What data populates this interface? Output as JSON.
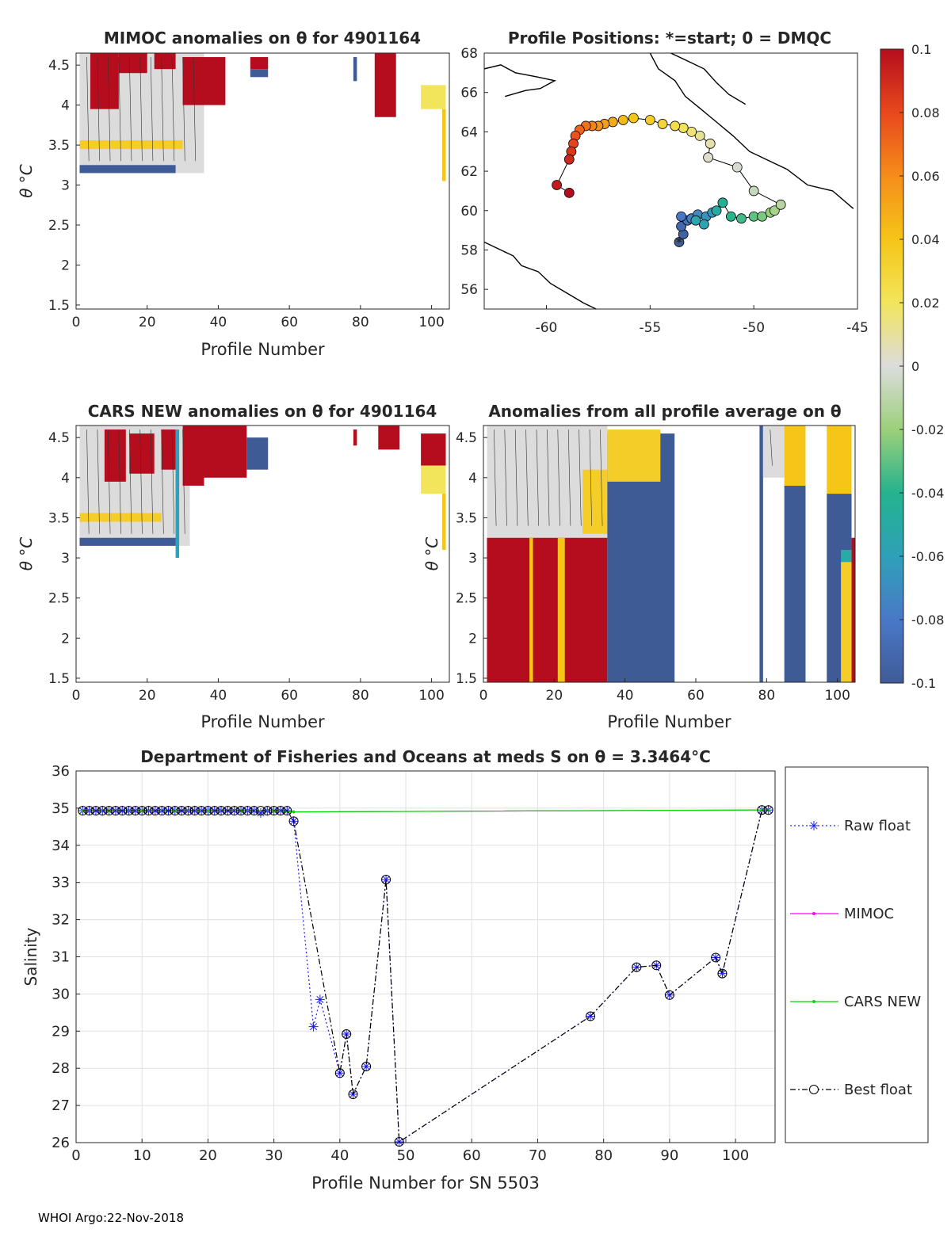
{
  "footer": "WHOI Argo:22-Nov-2018",
  "colors": {
    "axis": "#262626",
    "grid": "#e0e0e0",
    "raw": "#2020ff",
    "mimoc": "#ff00ff",
    "cars": "#00dd00",
    "best": "#000000",
    "land": "#000000",
    "high": "#b50d1d",
    "low": "#3f5b96",
    "neutral": "#d8d8d8",
    "band": "#f5c518"
  },
  "colorbar": {
    "ticks": [
      "0.1",
      "0.08",
      "0.06",
      "0.04",
      "0.02",
      "0",
      "-0.02",
      "-0.04",
      "-0.06",
      "-0.08",
      "-0.1"
    ],
    "range": [
      -0.1,
      0.1
    ],
    "stops": [
      "#3f5b96",
      "#4a78c7",
      "#2fa0b9",
      "#24b38e",
      "#9cd07a",
      "#dcdcdc",
      "#f2e55c",
      "#f5c518",
      "#f58d1a",
      "#e8481c",
      "#b50d1d"
    ]
  },
  "chart_data": [
    {
      "id": "mimoc",
      "type": "heatmap",
      "title": "MIMOC anomalies on θ  for 4901164",
      "xlabel": "Profile Number",
      "ylabel": "θ °C",
      "xlim": [
        0,
        105
      ],
      "ylim": [
        1.45,
        4.65
      ],
      "xticks": [
        "0",
        "20",
        "40",
        "60",
        "80",
        "100"
      ],
      "xtick_values": [
        0,
        20,
        40,
        60,
        80,
        100
      ],
      "yticks": [
        "1.5",
        "2",
        "2.5",
        "3",
        "3.5",
        "4",
        "4.5"
      ],
      "ytick_values": [
        1.5,
        2,
        2.5,
        3,
        3.5,
        4,
        4.5
      ],
      "regions": [
        {
          "x0": 1,
          "x1": 36,
          "y0": 3.15,
          "y1": 4.65,
          "value": 0.0
        },
        {
          "x0": 1,
          "x1": 30,
          "y0": 3.45,
          "y1": 3.56,
          "value": 0.035
        },
        {
          "x0": 4,
          "x1": 12,
          "y0": 3.95,
          "y1": 4.65,
          "value": 0.1
        },
        {
          "x0": 12,
          "x1": 20,
          "y0": 4.4,
          "y1": 4.65,
          "value": 0.1
        },
        {
          "x0": 22,
          "x1": 28,
          "y0": 4.45,
          "y1": 4.65,
          "value": 0.1
        },
        {
          "x0": 30,
          "x1": 42,
          "y0": 4.0,
          "y1": 4.6,
          "value": 0.1
        },
        {
          "x0": 1,
          "x1": 28,
          "y0": 3.15,
          "y1": 3.25,
          "value": -0.1
        },
        {
          "x0": 49,
          "x1": 54,
          "y0": 4.45,
          "y1": 4.6,
          "value": 0.1
        },
        {
          "x0": 49,
          "x1": 54,
          "y0": 4.35,
          "y1": 4.45,
          "value": -0.1
        },
        {
          "x0": 78,
          "x1": 79,
          "y0": 4.3,
          "y1": 4.6,
          "value": -0.1
        },
        {
          "x0": 84,
          "x1": 90,
          "y0": 3.85,
          "y1": 4.65,
          "value": 0.1
        },
        {
          "x0": 97,
          "x1": 104,
          "y0": 3.95,
          "y1": 4.25,
          "value": 0.02
        },
        {
          "x0": 103,
          "x1": 104,
          "y0": 3.05,
          "y1": 3.95,
          "value": 0.04
        }
      ]
    },
    {
      "id": "map",
      "type": "scatter",
      "title": "Profile Positions: *=start; 0 = DMQC",
      "xlabel": "",
      "ylabel": "",
      "xlim": [
        -63,
        -45
      ],
      "ylim": [
        55,
        68
      ],
      "xticks": [
        "-60",
        "-55",
        "-50",
        "-45"
      ],
      "xtick_values": [
        -60,
        -55,
        -50,
        -45
      ],
      "yticks": [
        "56",
        "58",
        "60",
        "62",
        "64",
        "66",
        "68"
      ],
      "ytick_values": [
        56,
        58,
        60,
        62,
        64,
        66,
        68
      ],
      "points": [
        [
          -53.6,
          58.4
        ],
        [
          -53.4,
          58.8
        ],
        [
          -53.5,
          59.2
        ],
        [
          -53.2,
          59.5
        ],
        [
          -53.5,
          59.7
        ],
        [
          -53.0,
          59.6
        ],
        [
          -52.7,
          59.8
        ],
        [
          -52.3,
          59.7
        ],
        [
          -52.0,
          59.9
        ],
        [
          -52.4,
          59.3
        ],
        [
          -52.8,
          59.5
        ],
        [
          -51.8,
          60.0
        ],
        [
          -51.5,
          60.4
        ],
        [
          -51.1,
          59.7
        ],
        [
          -50.6,
          59.6
        ],
        [
          -50.0,
          59.7
        ],
        [
          -49.6,
          59.7
        ],
        [
          -49.2,
          59.9
        ],
        [
          -49.0,
          60.0
        ],
        [
          -48.7,
          60.3
        ],
        [
          -50.0,
          61.0
        ],
        [
          -50.8,
          62.2
        ],
        [
          -52.2,
          62.7
        ],
        [
          -52.1,
          63.4
        ],
        [
          -52.6,
          63.8
        ],
        [
          -53.0,
          64.0
        ],
        [
          -53.4,
          64.2
        ],
        [
          -53.8,
          64.3
        ],
        [
          -54.4,
          64.4
        ],
        [
          -55.0,
          64.6
        ],
        [
          -55.8,
          64.7
        ],
        [
          -56.3,
          64.6
        ],
        [
          -56.8,
          64.5
        ],
        [
          -57.2,
          64.4
        ],
        [
          -57.5,
          64.3
        ],
        [
          -57.8,
          64.3
        ],
        [
          -58.1,
          64.3
        ],
        [
          -58.4,
          64.1
        ],
        [
          -58.6,
          63.8
        ],
        [
          -58.7,
          63.4
        ],
        [
          -58.8,
          63.0
        ],
        [
          -58.9,
          62.6
        ],
        [
          -59.5,
          61.3
        ],
        [
          -58.9,
          60.9
        ]
      ]
    },
    {
      "id": "cars",
      "type": "heatmap",
      "title": "CARS NEW anomalies on θ for 4901164",
      "xlabel": "Profile Number",
      "ylabel": "θ °C",
      "xlim": [
        0,
        105
      ],
      "ylim": [
        1.45,
        4.65
      ],
      "xticks": [
        "0",
        "20",
        "40",
        "60",
        "80",
        "100"
      ],
      "xtick_values": [
        0,
        20,
        40,
        60,
        80,
        100
      ],
      "yticks": [
        "1.5",
        "2",
        "2.5",
        "3",
        "3.5",
        "4",
        "4.5"
      ],
      "ytick_values": [
        1.5,
        2,
        2.5,
        3,
        3.5,
        4,
        4.5
      ],
      "regions": [
        {
          "x0": 1,
          "x1": 32,
          "y0": 3.15,
          "y1": 4.65,
          "value": 0.0
        },
        {
          "x0": 1,
          "x1": 24,
          "y0": 3.45,
          "y1": 3.56,
          "value": 0.035
        },
        {
          "x0": 8,
          "x1": 14,
          "y0": 3.95,
          "y1": 4.6,
          "value": 0.1
        },
        {
          "x0": 15,
          "x1": 22,
          "y0": 4.05,
          "y1": 4.55,
          "value": 0.1
        },
        {
          "x0": 24,
          "x1": 28,
          "y0": 4.1,
          "y1": 4.6,
          "value": 0.1
        },
        {
          "x0": 28,
          "x1": 29,
          "y0": 3.0,
          "y1": 4.6,
          "value": -0.06
        },
        {
          "x0": 30,
          "x1": 36,
          "y0": 3.9,
          "y1": 4.65,
          "value": 0.1
        },
        {
          "x0": 36,
          "x1": 48,
          "y0": 4.0,
          "y1": 4.65,
          "value": 0.1
        },
        {
          "x0": 48,
          "x1": 54,
          "y0": 4.1,
          "y1": 4.5,
          "value": -0.1
        },
        {
          "x0": 1,
          "x1": 28,
          "y0": 3.15,
          "y1": 3.25,
          "value": -0.1
        },
        {
          "x0": 78,
          "x1": 79,
          "y0": 4.4,
          "y1": 4.6,
          "value": 0.1
        },
        {
          "x0": 85,
          "x1": 91,
          "y0": 4.35,
          "y1": 4.65,
          "value": 0.1
        },
        {
          "x0": 97,
          "x1": 104,
          "y0": 4.15,
          "y1": 4.55,
          "value": 0.1
        },
        {
          "x0": 97,
          "x1": 104,
          "y0": 3.8,
          "y1": 4.15,
          "value": 0.02
        },
        {
          "x0": 103,
          "x1": 104,
          "y0": 3.1,
          "y1": 3.8,
          "value": 0.04
        }
      ]
    },
    {
      "id": "allavg",
      "type": "heatmap",
      "title": "Anomalies from all profile average on θ",
      "xlabel": "Profile Number",
      "ylabel": "θ °C",
      "xlim": [
        0,
        105
      ],
      "ylim": [
        1.45,
        4.65
      ],
      "xticks": [
        "0",
        "20",
        "40",
        "60",
        "80",
        "100"
      ],
      "xtick_values": [
        0,
        20,
        40,
        60,
        80,
        100
      ],
      "yticks": [
        "1.5",
        "2",
        "2.5",
        "3",
        "3.5",
        "4",
        "4.5"
      ],
      "ytick_values": [
        1.5,
        2,
        2.5,
        3,
        3.5,
        4,
        4.5
      ],
      "regions": [
        {
          "x0": 1,
          "x1": 35,
          "y0": 3.25,
          "y1": 4.65,
          "value": 0.0
        },
        {
          "x0": 1,
          "x1": 35,
          "y0": 1.45,
          "y1": 3.25,
          "value": 0.1
        },
        {
          "x0": 13,
          "x1": 14,
          "y0": 1.45,
          "y1": 3.25,
          "value": 0.04
        },
        {
          "x0": 21,
          "x1": 23,
          "y0": 1.45,
          "y1": 3.25,
          "value": 0.04
        },
        {
          "x0": 28,
          "x1": 35,
          "y0": 3.3,
          "y1": 4.1,
          "value": 0.035
        },
        {
          "x0": 35,
          "x1": 54,
          "y0": 1.45,
          "y1": 4.55,
          "value": -0.1
        },
        {
          "x0": 35,
          "x1": 50,
          "y0": 3.95,
          "y1": 4.6,
          "value": 0.035
        },
        {
          "x0": 78,
          "x1": 79,
          "y0": 1.45,
          "y1": 4.65,
          "value": -0.1
        },
        {
          "x0": 79,
          "x1": 85,
          "y0": 4.0,
          "y1": 4.65,
          "value": 0.0
        },
        {
          "x0": 85,
          "x1": 91,
          "y0": 1.45,
          "y1": 3.9,
          "value": -0.1
        },
        {
          "x0": 85,
          "x1": 91,
          "y0": 3.9,
          "y1": 4.65,
          "value": 0.04
        },
        {
          "x0": 97,
          "x1": 104,
          "y0": 1.45,
          "y1": 3.8,
          "value": -0.1
        },
        {
          "x0": 97,
          "x1": 104,
          "y0": 3.8,
          "y1": 4.65,
          "value": 0.04
        },
        {
          "x0": 101,
          "x1": 104,
          "y0": 1.45,
          "y1": 2.95,
          "value": 0.035
        },
        {
          "x0": 101,
          "x1": 104,
          "y0": 2.95,
          "y1": 3.1,
          "value": -0.05
        },
        {
          "x0": 104,
          "x1": 105,
          "y0": 1.45,
          "y1": 3.25,
          "value": 0.1
        }
      ]
    },
    {
      "id": "salinity",
      "type": "line",
      "title": "Department of Fisheries and Oceans at meds S on θ = 3.3464°C",
      "xlabel": "Profile Number for SN 5503",
      "ylabel": "Salinity",
      "xlim": [
        0,
        106
      ],
      "ylim": [
        26,
        36
      ],
      "xticks": [
        "0",
        "10",
        "20",
        "30",
        "40",
        "50",
        "60",
        "70",
        "80",
        "90",
        "100"
      ],
      "xtick_values": [
        0,
        10,
        20,
        30,
        40,
        50,
        60,
        70,
        80,
        90,
        100
      ],
      "yticks": [
        "26",
        "27",
        "28",
        "29",
        "30",
        "31",
        "32",
        "33",
        "34",
        "35",
        "36"
      ],
      "ytick_values": [
        26,
        27,
        28,
        29,
        30,
        31,
        32,
        33,
        34,
        35,
        36
      ],
      "legend": [
        "Raw float",
        "MIMOC",
        "CARS NEW",
        "Best float"
      ],
      "series": [
        {
          "name": "Raw float",
          "x": [
            1,
            2,
            3,
            4,
            5,
            6,
            7,
            8,
            9,
            10,
            11,
            12,
            13,
            14,
            15,
            16,
            17,
            18,
            19,
            20,
            21,
            22,
            23,
            24,
            25,
            26,
            27,
            28,
            29,
            30,
            31,
            32,
            33,
            36,
            37,
            40,
            41,
            42,
            44,
            47,
            49,
            78,
            85,
            88,
            90,
            97,
            98,
            104,
            105
          ],
          "y": [
            34.93,
            34.93,
            34.93,
            34.93,
            34.93,
            34.93,
            34.93,
            34.93,
            34.93,
            34.93,
            34.93,
            34.93,
            34.93,
            34.93,
            34.93,
            34.93,
            34.93,
            34.93,
            34.93,
            34.93,
            34.93,
            34.93,
            34.93,
            34.93,
            34.93,
            34.93,
            34.93,
            34.87,
            34.93,
            34.93,
            34.93,
            34.93,
            34.65,
            29.12,
            29.85,
            27.87,
            28.92,
            27.3,
            28.05,
            33.08,
            26.02,
            29.4,
            30.72,
            30.77,
            29.97,
            30.98,
            30.55,
            34.95,
            34.95
          ]
        },
        {
          "name": "MIMOC",
          "x": [
            1,
            5,
            10,
            15,
            20,
            25,
            30,
            33,
            104,
            105
          ],
          "y": [
            34.93,
            34.93,
            34.93,
            34.93,
            34.93,
            34.93,
            34.93,
            34.9,
            34.95,
            34.95
          ]
        },
        {
          "name": "CARS NEW",
          "x": [
            1,
            5,
            10,
            15,
            20,
            25,
            30,
            33,
            104,
            105
          ],
          "y": [
            34.93,
            34.93,
            34.93,
            34.93,
            34.93,
            34.93,
            34.93,
            34.9,
            34.95,
            34.95
          ]
        },
        {
          "name": "Best float",
          "x": [
            1,
            2,
            3,
            4,
            5,
            6,
            7,
            8,
            9,
            10,
            11,
            12,
            13,
            14,
            15,
            16,
            17,
            18,
            19,
            20,
            21,
            22,
            23,
            24,
            25,
            26,
            27,
            28,
            29,
            30,
            31,
            32,
            33,
            40,
            41,
            42,
            44,
            47,
            49,
            78,
            85,
            88,
            90,
            97,
            98,
            104,
            105
          ],
          "y": [
            34.93,
            34.93,
            34.93,
            34.93,
            34.93,
            34.93,
            34.93,
            34.93,
            34.93,
            34.93,
            34.93,
            34.93,
            34.93,
            34.93,
            34.93,
            34.93,
            34.93,
            34.93,
            34.93,
            34.93,
            34.93,
            34.93,
            34.93,
            34.93,
            34.93,
            34.93,
            34.93,
            34.93,
            34.93,
            34.93,
            34.93,
            34.93,
            34.65,
            27.87,
            28.92,
            27.3,
            28.05,
            33.08,
            26.02,
            29.4,
            30.72,
            30.77,
            29.97,
            30.98,
            30.55,
            34.95,
            34.95
          ]
        }
      ]
    }
  ]
}
